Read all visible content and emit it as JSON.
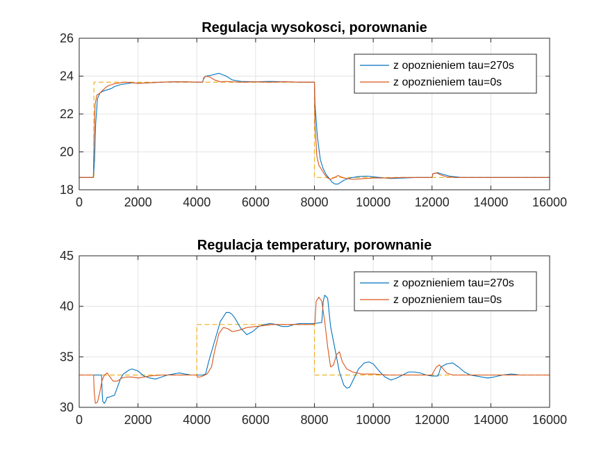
{
  "chart_data": [
    {
      "type": "line",
      "title": "Regulacja wysokosci, porownanie",
      "xlabel": "",
      "ylabel": "",
      "xlim": [
        0,
        16000
      ],
      "ylim": [
        18,
        26
      ],
      "xticks": [
        0,
        2000,
        4000,
        6000,
        8000,
        10000,
        12000,
        14000,
        16000
      ],
      "xtick_labels": [
        "0",
        "2000",
        "4000",
        "6000",
        "8000",
        "10000",
        "12000",
        "14000",
        "16000"
      ],
      "yticks": [
        18,
        20,
        22,
        24,
        26
      ],
      "ytick_labels": [
        "18",
        "20",
        "22",
        "24",
        "26"
      ],
      "grid": true,
      "legend_position": "top-right",
      "series": [
        {
          "name": "z opoznieniem tau=270s",
          "color": "#0072BD",
          "style": "solid",
          "x": [
            0,
            480,
            520,
            560,
            620,
            700,
            800,
            900,
            1000,
            1100,
            1200,
            1400,
            1600,
            1800,
            2000,
            2400,
            2800,
            3200,
            3600,
            4000,
            4200,
            4230,
            4300,
            4500,
            4750,
            5000,
            5200,
            5500,
            6000,
            6500,
            7000,
            7500,
            8000,
            8020,
            8100,
            8200,
            8300,
            8400,
            8500,
            8600,
            8700,
            8800,
            9000,
            9200,
            9500,
            9800,
            10200,
            10600,
            11000,
            11500,
            12000,
            12030,
            12200,
            12400,
            12600,
            13000,
            13500,
            14000,
            15000,
            16000
          ],
          "y": [
            18.65,
            18.65,
            19.5,
            21.5,
            22.8,
            23.1,
            23.2,
            23.25,
            23.3,
            23.35,
            23.45,
            23.55,
            23.6,
            23.65,
            23.62,
            23.65,
            23.68,
            23.7,
            23.7,
            23.68,
            23.68,
            23.9,
            24.0,
            24.05,
            24.15,
            24.0,
            23.8,
            23.72,
            23.7,
            23.72,
            23.7,
            23.68,
            23.68,
            22.5,
            20.8,
            19.6,
            19.1,
            18.8,
            18.6,
            18.4,
            18.3,
            18.3,
            18.5,
            18.62,
            18.7,
            18.72,
            18.65,
            18.6,
            18.62,
            18.65,
            18.65,
            18.85,
            18.9,
            18.8,
            18.72,
            18.65,
            18.65,
            18.65,
            18.65,
            18.65
          ]
        },
        {
          "name": "z opoznieniem tau=0s",
          "color": "#D95319",
          "style": "solid",
          "x": [
            0,
            480,
            500,
            540,
            600,
            700,
            800,
            900,
            1000,
            1200,
            1400,
            1600,
            2000,
            2400,
            2800,
            3200,
            3600,
            4000,
            4200,
            4230,
            4300,
            4450,
            4600,
            4800,
            5000,
            5200,
            5600,
            6000,
            6500,
            7000,
            7500,
            8000,
            8020,
            8080,
            8150,
            8250,
            8350,
            8450,
            8550,
            8650,
            8800,
            9000,
            9300,
            9600,
            10000,
            10500,
            11000,
            12000,
            12030,
            12150,
            12300,
            12500,
            12800,
            13200,
            14000,
            15000,
            16000
          ],
          "y": [
            18.65,
            18.65,
            20.5,
            22.5,
            23.0,
            23.1,
            23.25,
            23.4,
            23.5,
            23.6,
            23.65,
            23.68,
            23.62,
            23.65,
            23.68,
            23.7,
            23.7,
            23.68,
            23.68,
            23.85,
            24.0,
            23.95,
            23.8,
            23.7,
            23.72,
            23.7,
            23.68,
            23.7,
            23.68,
            23.7,
            23.68,
            23.68,
            21.5,
            19.8,
            19.3,
            19.05,
            18.8,
            18.62,
            18.55,
            18.62,
            18.75,
            18.62,
            18.55,
            18.58,
            18.62,
            18.62,
            18.65,
            18.65,
            18.85,
            18.9,
            18.78,
            18.68,
            18.65,
            18.65,
            18.65,
            18.65,
            18.65
          ]
        },
        {
          "name": "",
          "color": "#EDB120",
          "style": "dashed",
          "x": [
            0,
            500,
            500,
            8000,
            8000,
            16000
          ],
          "y": [
            18.65,
            18.65,
            23.68,
            23.68,
            18.65,
            18.65
          ]
        }
      ]
    },
    {
      "type": "line",
      "title": "Regulacja temperatury, porownanie",
      "xlabel": "",
      "ylabel": "",
      "xlim": [
        0,
        16000
      ],
      "ylim": [
        30,
        45
      ],
      "xticks": [
        0,
        2000,
        4000,
        6000,
        8000,
        10000,
        12000,
        14000,
        16000
      ],
      "xtick_labels": [
        "0",
        "2000",
        "4000",
        "6000",
        "8000",
        "10000",
        "12000",
        "14000",
        "16000"
      ],
      "yticks": [
        30,
        35,
        40,
        45
      ],
      "ytick_labels": [
        "30",
        "35",
        "40",
        "45"
      ],
      "grid": true,
      "legend_position": "top-right",
      "series": [
        {
          "name": "z opoznieniem tau=270s",
          "color": "#0072BD",
          "style": "solid",
          "x": [
            0,
            760,
            780,
            800,
            850,
            900,
            950,
            1000,
            1100,
            1200,
            1300,
            1400,
            1500,
            1600,
            1700,
            1800,
            1900,
            2000,
            2200,
            2400,
            2600,
            2800,
            3000,
            3200,
            3400,
            3600,
            3800,
            4000,
            4200,
            4300,
            4400,
            4600,
            4800,
            5000,
            5100,
            5200,
            5300,
            5500,
            5700,
            5900,
            6100,
            6300,
            6500,
            6700,
            6900,
            7100,
            7300,
            7500,
            7700,
            8000,
            8250,
            8300,
            8350,
            8450,
            8550,
            8650,
            8750,
            8850,
            9000,
            9100,
            9200,
            9300,
            9500,
            9700,
            9850,
            10000,
            10200,
            10400,
            10600,
            10800,
            11000,
            11200,
            11400,
            11600,
            11800,
            12000,
            12200,
            12250,
            12300,
            12500,
            12700,
            12900,
            13100,
            13300,
            13500,
            13700,
            13900,
            14100,
            14400,
            14700,
            15000,
            15500,
            16000
          ],
          "y": [
            33.2,
            33.2,
            31.5,
            30.6,
            30.4,
            30.6,
            31.0,
            31.0,
            31.1,
            31.2,
            32.0,
            32.8,
            33.3,
            33.5,
            33.7,
            33.8,
            33.7,
            33.6,
            33.1,
            32.9,
            32.8,
            33.0,
            33.2,
            33.3,
            33.4,
            33.3,
            33.2,
            33.2,
            33.2,
            33.3,
            34.5,
            36.5,
            38.5,
            39.4,
            39.4,
            39.2,
            38.8,
            37.8,
            37.2,
            37.5,
            38.0,
            38.2,
            38.3,
            38.2,
            38.0,
            38.0,
            38.2,
            38.3,
            38.3,
            38.3,
            38.4,
            40.5,
            41.1,
            40.8,
            38.0,
            36.5,
            35.0,
            33.5,
            32.2,
            31.9,
            32.0,
            32.6,
            33.8,
            34.4,
            34.5,
            34.3,
            33.6,
            33.0,
            32.7,
            32.9,
            33.2,
            33.5,
            33.5,
            33.4,
            33.2,
            33.1,
            33.1,
            33.5,
            34.0,
            34.3,
            34.4,
            34.0,
            33.5,
            33.2,
            33.1,
            33.0,
            32.9,
            33.0,
            33.2,
            33.3,
            33.2,
            33.2,
            33.2
          ]
        },
        {
          "name": "z opoznieniem tau=0s",
          "color": "#D95319",
          "style": "solid",
          "x": [
            0,
            490,
            510,
            550,
            620,
            700,
            780,
            860,
            950,
            1050,
            1150,
            1300,
            1450,
            1600,
            1800,
            2000,
            2400,
            2800,
            3200,
            3600,
            4000,
            4020,
            4100,
            4200,
            4350,
            4500,
            4600,
            4750,
            4900,
            5050,
            5200,
            5400,
            5700,
            6000,
            6300,
            6600,
            6900,
            7200,
            7500,
            8000,
            8020,
            8060,
            8150,
            8250,
            8350,
            8450,
            8550,
            8650,
            8750,
            8850,
            8950,
            9100,
            9300,
            9600,
            10000,
            10500,
            11000,
            12000,
            12050,
            12150,
            12250,
            12350,
            12500,
            12700,
            13000,
            13500,
            14000,
            15000,
            16000
          ],
          "y": [
            33.2,
            33.2,
            31.5,
            30.4,
            30.5,
            31.5,
            32.7,
            33.2,
            33.4,
            33.0,
            32.6,
            32.6,
            32.9,
            33.0,
            33.0,
            32.9,
            33.1,
            33.2,
            33.2,
            33.2,
            33.2,
            33.0,
            33.0,
            33.1,
            33.3,
            34.0,
            35.5,
            37.3,
            37.9,
            37.8,
            37.5,
            37.6,
            37.9,
            38.0,
            38.1,
            38.2,
            38.2,
            38.2,
            38.2,
            38.2,
            38.5,
            40.5,
            40.9,
            40.5,
            38.5,
            36.0,
            34.0,
            34.2,
            35.2,
            35.5,
            34.5,
            33.8,
            33.5,
            33.3,
            33.3,
            33.2,
            33.2,
            33.2,
            33.5,
            34.0,
            34.2,
            33.9,
            33.4,
            33.2,
            33.2,
            33.2,
            33.2,
            33.2,
            33.2
          ]
        },
        {
          "name": "",
          "color": "#EDB120",
          "style": "dashed",
          "x": [
            0,
            4000,
            4000,
            8000,
            8000,
            16000
          ],
          "y": [
            33.2,
            33.2,
            38.2,
            38.2,
            33.2,
            33.2
          ]
        }
      ]
    }
  ]
}
